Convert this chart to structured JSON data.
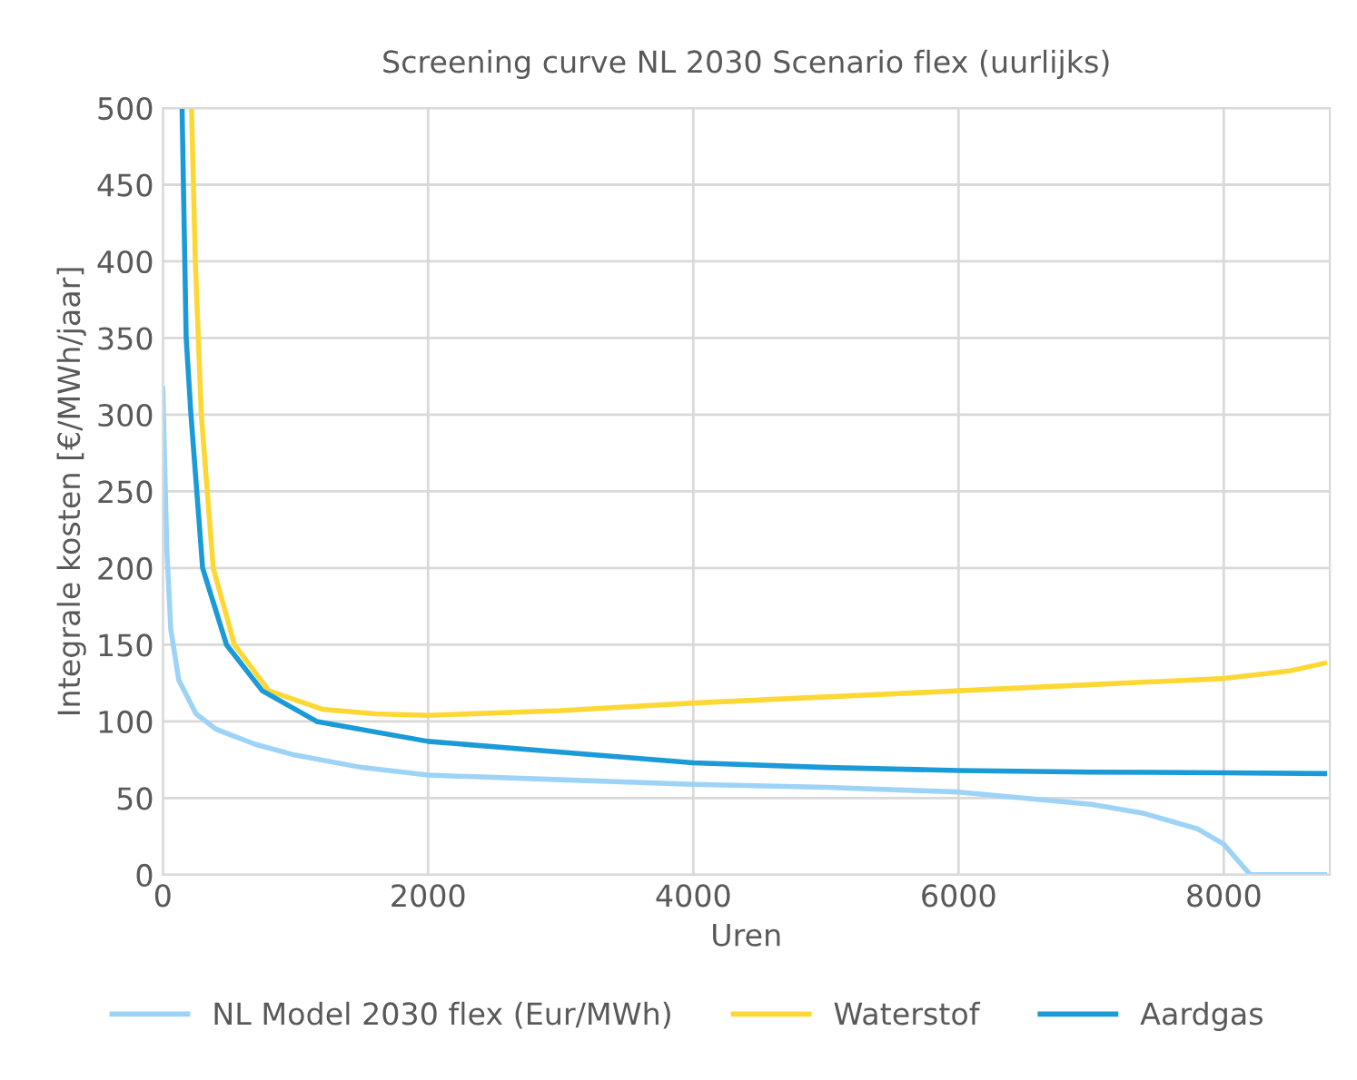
{
  "chart_data": {
    "type": "line",
    "title": "Screening curve NL 2030 Scenario flex (uurlijks)",
    "xlabel": "Uren",
    "ylabel": "Integrale kosten [€/MWh/jaar]",
    "xlim": [
      0,
      8800
    ],
    "xticks": [
      0,
      2000,
      4000,
      6000,
      8000
    ],
    "ylim": [
      0,
      500
    ],
    "yticks": [
      0,
      50,
      100,
      150,
      200,
      250,
      300,
      350,
      400,
      450,
      500
    ],
    "grid": true,
    "legend": "bottom",
    "marker": "none",
    "line_style": "solid",
    "series": [
      {
        "name": "NL Model 2030 flex (Eur/MWh)",
        "color": "#9dd3f7",
        "x": [
          0,
          30,
          60,
          120,
          250,
          400,
          700,
          1000,
          1500,
          2000,
          3000,
          4000,
          5000,
          6000,
          6500,
          7000,
          7400,
          7600,
          7800,
          8000,
          8150,
          8200,
          8760
        ],
        "values": [
          317,
          212,
          160,
          127,
          105,
          95,
          85,
          78,
          70,
          65,
          62,
          59,
          57,
          54,
          50,
          46,
          40,
          35,
          30,
          20,
          5,
          0,
          0
        ]
      },
      {
        "name": "Waterstof",
        "color": "#fdd835",
        "x": [
          216,
          245,
          290,
          380,
          540,
          800,
          1200,
          1600,
          2000,
          3000,
          4000,
          5000,
          6000,
          7000,
          8000,
          8500,
          8760
        ],
        "values": [
          500,
          400,
          300,
          200,
          150,
          120,
          108,
          105,
          104,
          107,
          112,
          116,
          120,
          124,
          128,
          133,
          138
        ]
      },
      {
        "name": "Aardgas",
        "color": "#1a9ad6",
        "x": [
          145,
          176,
          212,
          300,
          480,
          750,
          1160,
          2000,
          3000,
          4000,
          5000,
          6000,
          7000,
          8000,
          8760
        ],
        "values": [
          500,
          350,
          300,
          200,
          150,
          120,
          100,
          87,
          80,
          73,
          70,
          68,
          67,
          66.5,
          66
        ]
      }
    ]
  }
}
